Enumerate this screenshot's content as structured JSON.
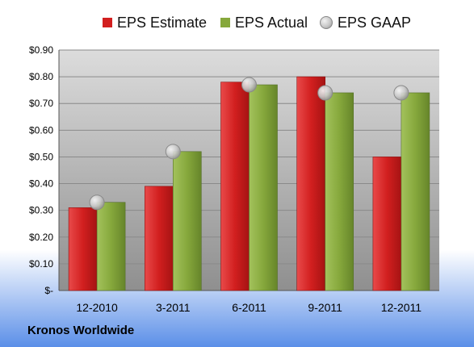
{
  "chart_data": {
    "type": "bar",
    "categories": [
      "12-2010",
      "3-2011",
      "6-2011",
      "9-2011",
      "12-2011"
    ],
    "series": [
      {
        "name": "EPS Estimate",
        "kind": "bar",
        "color": "#d21f1f",
        "values": [
          0.31,
          0.39,
          0.78,
          0.8,
          0.5
        ]
      },
      {
        "name": "EPS Actual",
        "kind": "bar",
        "color": "#86a83c",
        "values": [
          0.33,
          0.52,
          0.77,
          0.74,
          0.74
        ]
      },
      {
        "name": "EPS GAAP",
        "kind": "marker",
        "color": "#c0c0c0",
        "values": [
          0.33,
          0.52,
          0.77,
          0.74,
          0.74
        ]
      }
    ],
    "yticks": [
      "$-",
      "$0.10",
      "$0.20",
      "$0.30",
      "$0.40",
      "$0.50",
      "$0.60",
      "$0.70",
      "$0.80",
      "$0.90"
    ],
    "ylim": [
      0,
      0.9
    ],
    "grid": true,
    "legend_position": "top"
  },
  "footer": {
    "company": "Kronos Worldwide"
  },
  "colors": {
    "background_top": "#ffffff",
    "background_bottom": "#5b8fe8",
    "plot_top": "#dcdcdc",
    "plot_bottom": "#8f8f8f"
  }
}
